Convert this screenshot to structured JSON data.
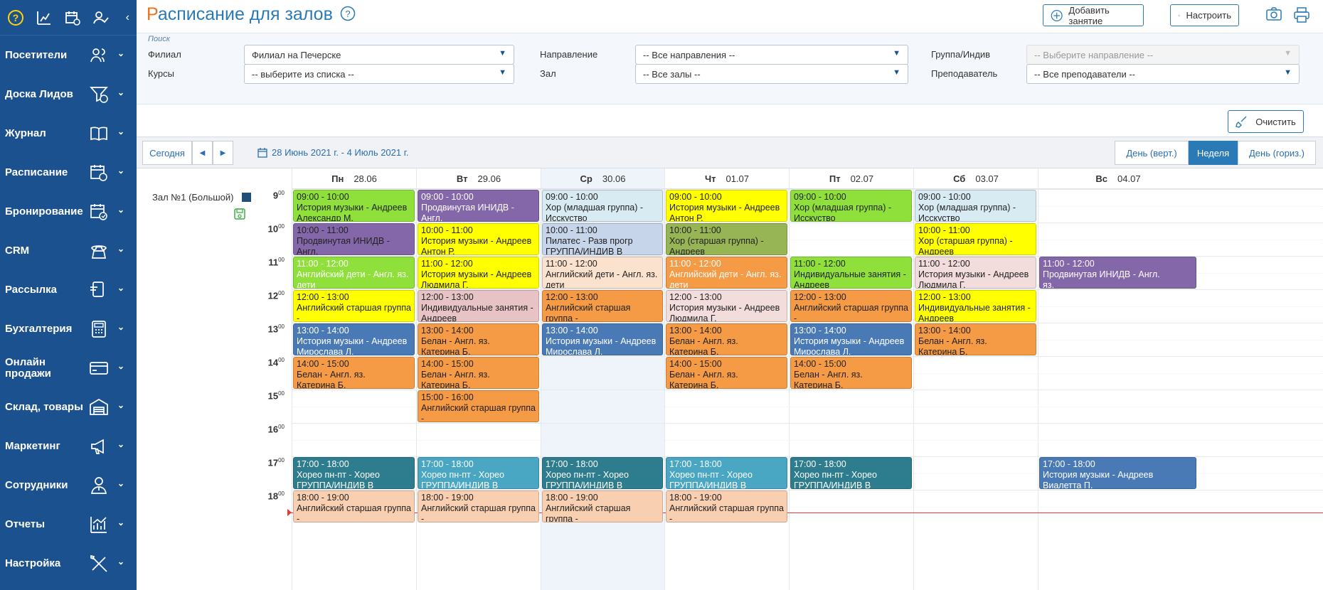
{
  "sidebar": {
    "items": [
      {
        "label": "Посетители",
        "icon": "visitors-icon"
      },
      {
        "label": "Доска Лидов",
        "icon": "leads-funnel-icon"
      },
      {
        "label": "Журнал",
        "icon": "journal-book-icon"
      },
      {
        "label": "Расписание",
        "icon": "schedule-calendar-icon"
      },
      {
        "label": "Бронирование",
        "icon": "booking-calendar-icon"
      },
      {
        "label": "CRM",
        "icon": "crm-phone-icon"
      },
      {
        "label": "Рассылка",
        "icon": "mailing-icon"
      },
      {
        "label": "Бухгалтерия",
        "icon": "calculator-icon"
      },
      {
        "label": "Онлайн продажи",
        "icon": "card-icon"
      },
      {
        "label": "Склад, товары",
        "icon": "warehouse-icon"
      },
      {
        "label": "Маркетинг",
        "icon": "megaphone-icon"
      },
      {
        "label": "Сотрудники",
        "icon": "employees-icon"
      },
      {
        "label": "Отчеты",
        "icon": "reports-chart-icon"
      },
      {
        "label": "Настройка",
        "icon": "settings-tools-icon"
      }
    ]
  },
  "header": {
    "title_first": "Р",
    "title_rest": "асписание для залов",
    "add_button": "Добавить занятие",
    "configure_button": "Настроить"
  },
  "filters": {
    "search_label": "Поиск",
    "branch_label": "Филиал",
    "branch_value": "Филиал на Печерске",
    "courses_label": "Курсы",
    "courses_value": "-- выберите из списка --",
    "direction_label": "Направление",
    "direction_value": "-- Все направления --",
    "hall_label": "Зал",
    "hall_value": "-- Все залы --",
    "group_label": "Группа/Индив",
    "group_value": "-- Выберите направление --",
    "teacher_label": "Преподаватель",
    "teacher_value": "-- Все преподаватели --",
    "clear_button": "Очистить"
  },
  "calendar_nav": {
    "today": "Сегодня",
    "date_range": "28 Июнь 2021 г. - 4 Июль 2021 г.",
    "views": [
      "День (верт.)",
      "Неделя",
      "День (гориз.)"
    ],
    "active_view": "Неделя"
  },
  "days": [
    {
      "dow": "Пн",
      "date": "28.06"
    },
    {
      "dow": "Вт",
      "date": "29.06"
    },
    {
      "dow": "Ср",
      "date": "30.06"
    },
    {
      "dow": "Чт",
      "date": "01.07"
    },
    {
      "dow": "Пт",
      "date": "02.07"
    },
    {
      "dow": "Сб",
      "date": "03.07"
    },
    {
      "dow": "Вс",
      "date": "04.07"
    }
  ],
  "hall": {
    "name": "Зал №1 (Большой)"
  },
  "hours": [
    "9",
    "10",
    "11",
    "12",
    "13",
    "14",
    "15",
    "16",
    "17",
    "18"
  ],
  "hour_minutes": "00",
  "colors": {
    "green": "#8fe03a",
    "purple": "#8467a8",
    "lightblue": "#d8ebf3",
    "yellow": "#ffff00",
    "olive": "#97b554",
    "periwinkle": "#c6d5ea",
    "peach": "#fbe2cf",
    "orange": "#f59a45",
    "pink": "#e7c3c5",
    "pinkpale": "#f2dcdc",
    "blue": "#4a7ab5",
    "teal": "#2e7d8e",
    "sky": "#4aa7c4",
    "salmon": "#f8cfb0"
  },
  "events": [
    {
      "day": 0,
      "start": 9,
      "time": "09:00 - 10:00",
      "name": "История музыки - Андреев\nАлександр М.",
      "color": "green"
    },
    {
      "day": 1,
      "start": 9,
      "time": "09:00 - 10:00",
      "name": "Продвинутая ИНИДВ - Англ.\nяз.",
      "color": "purple",
      "white": true
    },
    {
      "day": 2,
      "start": 9,
      "time": "09:00 - 10:00",
      "name": "Хор (младшая группа) -\nИсскуство",
      "color": "lightblue"
    },
    {
      "day": 3,
      "start": 9,
      "time": "09:00 - 10:00",
      "name": "История музыки - Андреев\nАнтон Р.",
      "color": "yellow"
    },
    {
      "day": 4,
      "start": 9,
      "time": "09:00 - 10:00",
      "name": "Хор (младшая группа) -\nИсскуство",
      "color": "green"
    },
    {
      "day": 5,
      "start": 9,
      "time": "09:00 - 10:00",
      "name": "Хор (младшая группа) -\nИсскуство",
      "color": "lightblue"
    },
    {
      "day": 0,
      "start": 10,
      "time": "10:00 - 11:00",
      "name": "Продвинутая ИНИДВ - Англ.\nяз.",
      "color": "purple"
    },
    {
      "day": 1,
      "start": 10,
      "time": "10:00 - 11:00",
      "name": "История музыки - Андреев\nАнтон Р.",
      "color": "yellow"
    },
    {
      "day": 2,
      "start": 10,
      "time": "10:00 - 11:00",
      "name": "Пилатес - Разв прогр\nГРУППА/ИНДИВ В АРХИВЕ",
      "color": "periwinkle"
    },
    {
      "day": 3,
      "start": 10,
      "time": "10:00 - 11:00",
      "name": "Хор (старшая группа) -\nАндреев",
      "color": "olive"
    },
    {
      "day": 5,
      "start": 10,
      "time": "10:00 - 11:00",
      "name": "Хор (старшая группа) -\nАндреев",
      "color": "yellow"
    },
    {
      "day": 0,
      "start": 11,
      "time": "11:00 - 12:00",
      "name": "Английский дети - Англ. яз.\nдети",
      "color": "green",
      "white": true
    },
    {
      "day": 1,
      "start": 11,
      "time": "11:00 - 12:00",
      "name": "История музыки - Андреев\nЛюдмила Г.",
      "color": "yellow"
    },
    {
      "day": 2,
      "start": 11,
      "time": "11:00 - 12:00",
      "name": "Английский дети - Англ. яз.\nдети",
      "color": "peach"
    },
    {
      "day": 3,
      "start": 11,
      "time": "11:00 - 12:00",
      "name": "Английский дети - Англ. яз.\nдети",
      "color": "orange",
      "white": true
    },
    {
      "day": 4,
      "start": 11,
      "time": "11:00 - 12:00",
      "name": "Индивидуальные занятия -\nАндреев",
      "color": "green"
    },
    {
      "day": 5,
      "start": 11,
      "time": "11:00 - 12:00",
      "name": "История музыки - Андреев\nЛюдмила Г.",
      "color": "pinkpale"
    },
    {
      "day": 6,
      "start": 11,
      "time": "11:00 - 12:00",
      "name": "Продвинутая ИНИДВ - Англ.\nяз.",
      "color": "purple",
      "white": true
    },
    {
      "day": 0,
      "start": 12,
      "time": "12:00 - 13:00",
      "name": "Английский старшая группа -\nАнгл. яз. дети",
      "color": "yellow"
    },
    {
      "day": 1,
      "start": 12,
      "time": "12:00 - 13:00",
      "name": "Индивидуальные занятия -\nАндреев",
      "color": "pink"
    },
    {
      "day": 2,
      "start": 12,
      "time": "12:00 - 13:00",
      "name": "Английский старшая группа -\nАнгл. яз. дети",
      "color": "orange"
    },
    {
      "day": 3,
      "start": 12,
      "time": "12:00 - 13:00",
      "name": "История музыки - Андреев\nЛюдмила Г.",
      "color": "pinkpale"
    },
    {
      "day": 4,
      "start": 12,
      "time": "12:00 - 13:00",
      "name": "Английский старшая группа -\nАнгл. яз. дети",
      "color": "orange"
    },
    {
      "day": 5,
      "start": 12,
      "time": "12:00 - 13:00",
      "name": "Индивидуальные занятия -\nАндреев",
      "color": "yellow"
    },
    {
      "day": 0,
      "start": 13,
      "time": "13:00 - 14:00",
      "name": "История музыки - Андреев\nМирослава Л.",
      "color": "blue",
      "white": true
    },
    {
      "day": 1,
      "start": 13,
      "time": "13:00 - 14:00",
      "name": "Белан - Англ. яз.\nКатерина Б.",
      "color": "orange"
    },
    {
      "day": 2,
      "start": 13,
      "time": "13:00 - 14:00",
      "name": "История музыки - Андреев\nМирослава Л.",
      "color": "blue",
      "white": true
    },
    {
      "day": 3,
      "start": 13,
      "time": "13:00 - 14:00",
      "name": "Белан - Англ. яз.\nКатерина Б.",
      "color": "orange"
    },
    {
      "day": 4,
      "start": 13,
      "time": "13:00 - 14:00",
      "name": "История музыки - Андреев\nМирослава Л.",
      "color": "blue",
      "white": true
    },
    {
      "day": 5,
      "start": 13,
      "time": "13:00 - 14:00",
      "name": "Белан - Англ. яз.\nКатерина Б.",
      "color": "orange"
    },
    {
      "day": 0,
      "start": 14,
      "time": "14:00 - 15:00",
      "name": "Белан - Англ. яз.\nКатерина Б.",
      "color": "orange"
    },
    {
      "day": 1,
      "start": 14,
      "time": "14:00 - 15:00",
      "name": "Белан - Англ. яз.\nКатерина Б.",
      "color": "orange"
    },
    {
      "day": 3,
      "start": 14,
      "time": "14:00 - 15:00",
      "name": "Белан - Англ. яз.\nКатерина Б.",
      "color": "orange"
    },
    {
      "day": 4,
      "start": 14,
      "time": "14:00 - 15:00",
      "name": "Белан - Англ. яз.\nКатерина Б.",
      "color": "orange"
    },
    {
      "day": 1,
      "start": 15,
      "time": "15:00 - 16:00",
      "name": "Английский старшая группа -\nАнгл. яз. дети",
      "color": "orange"
    },
    {
      "day": 0,
      "start": 17,
      "time": "17:00 - 18:00",
      "name": "Хорео пн-пт - Хорео\nГРУППА/ИНДИВ В АРХИВЕ",
      "color": "teal",
      "white": true
    },
    {
      "day": 1,
      "start": 17,
      "time": "17:00 - 18:00",
      "name": "Хорео пн-пт - Хорео\nГРУППА/ИНДИВ В АРХИВЕ",
      "color": "sky",
      "white": true
    },
    {
      "day": 2,
      "start": 17,
      "time": "17:00 - 18:00",
      "name": "Хорео пн-пт - Хорео\nГРУППА/ИНДИВ В АРХИВЕ",
      "color": "teal",
      "white": true
    },
    {
      "day": 3,
      "start": 17,
      "time": "17:00 - 18:00",
      "name": "Хорео пн-пт - Хорео\nГРУППА/ИНДИВ В АРХИВЕ",
      "color": "sky",
      "white": true
    },
    {
      "day": 4,
      "start": 17,
      "time": "17:00 - 18:00",
      "name": "Хорео пн-пт - Хорео\nГРУППА/ИНДИВ В АРХИВЕ",
      "color": "teal",
      "white": true
    },
    {
      "day": 6,
      "start": 17,
      "time": "17:00 - 18:00",
      "name": "История музыки - Андреев\nВиалетта П.",
      "color": "blue",
      "white": true
    },
    {
      "day": 0,
      "start": 18,
      "time": "18:00 - 19:00",
      "name": "Английский старшая группа -\nАнгл. яз. дети",
      "color": "salmon"
    },
    {
      "day": 1,
      "start": 18,
      "time": "18:00 - 19:00",
      "name": "Английский старшая группа -\nАнгл. яз. дети",
      "color": "salmon"
    },
    {
      "day": 2,
      "start": 18,
      "time": "18:00 - 19:00",
      "name": "Английский старшая группа -\nАнгл. яз. дети",
      "color": "salmon"
    },
    {
      "day": 3,
      "start": 18,
      "time": "18:00 - 19:00",
      "name": "Английский старшая группа -\nАнгл. яз. дети",
      "color": "salmon"
    }
  ]
}
